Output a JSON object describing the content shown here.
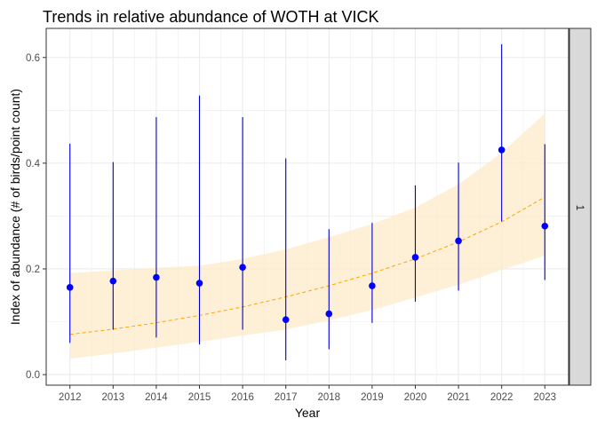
{
  "chart_data": {
    "type": "scatter",
    "title": "Trends in relative abundance of WOTH at VICK",
    "xlabel": "Year",
    "ylabel": "Index of abundance (# of birds/point count)",
    "strip_label": "1",
    "xlim": [
      2011.45,
      2023.55
    ],
    "ylim": [
      -0.02,
      0.655
    ],
    "x_ticks": [
      2012,
      2013,
      2014,
      2015,
      2016,
      2017,
      2018,
      2019,
      2020,
      2021,
      2022,
      2023
    ],
    "y_ticks": [
      0.0,
      0.2,
      0.4,
      0.6
    ],
    "y_tick_labels": [
      "0.0",
      "0.2",
      "0.4",
      "0.6"
    ],
    "grid": true,
    "colors": {
      "points": "#0000ff",
      "error_bars": "#0000cd",
      "trend_line": "#ffa500",
      "ribbon": "#fdebc8",
      "grid": "#ebebeb",
      "strip": "#d9d9d9",
      "panel_border": "#333333"
    },
    "series": [
      {
        "values": [
          {
            "x": 2012,
            "y": 0.165,
            "lower": 0.06,
            "upper": 0.437
          },
          {
            "x": 2013,
            "y": 0.177,
            "lower": 0.085,
            "upper": 0.402
          },
          {
            "x": 2014,
            "y": 0.184,
            "lower": 0.07,
            "upper": 0.487
          },
          {
            "x": 2015,
            "y": 0.173,
            "lower": 0.057,
            "upper": 0.528
          },
          {
            "x": 2016,
            "y": 0.203,
            "lower": 0.085,
            "upper": 0.487
          },
          {
            "x": 2017,
            "y": 0.104,
            "lower": 0.027,
            "upper": 0.409
          },
          {
            "x": 2018,
            "y": 0.115,
            "lower": 0.048,
            "upper": 0.275
          },
          {
            "x": 2019,
            "y": 0.168,
            "lower": 0.098,
            "upper": 0.287
          },
          {
            "x": 2020,
            "y": 0.222,
            "lower": 0.138,
            "upper": 0.358
          },
          {
            "x": 2021,
            "y": 0.253,
            "lower": 0.159,
            "upper": 0.401
          },
          {
            "x": 2022,
            "y": 0.425,
            "lower": 0.29,
            "upper": 0.625
          },
          {
            "x": 2023,
            "y": 0.281,
            "lower": 0.179,
            "upper": 0.436
          }
        ]
      }
    ],
    "trend": {
      "style": "dashed",
      "points": [
        {
          "x": 2012,
          "y": 0.076,
          "lower": 0.03,
          "upper": 0.192
        },
        {
          "x": 2013,
          "y": 0.086,
          "lower": 0.04,
          "upper": 0.197
        },
        {
          "x": 2014,
          "y": 0.098,
          "lower": 0.051,
          "upper": 0.202
        },
        {
          "x": 2015,
          "y": 0.112,
          "lower": 0.062,
          "upper": 0.206
        },
        {
          "x": 2016,
          "y": 0.128,
          "lower": 0.074,
          "upper": 0.219
        },
        {
          "x": 2017,
          "y": 0.147,
          "lower": 0.085,
          "upper": 0.237
        },
        {
          "x": 2018,
          "y": 0.168,
          "lower": 0.103,
          "upper": 0.26
        },
        {
          "x": 2019,
          "y": 0.192,
          "lower": 0.122,
          "upper": 0.285
        },
        {
          "x": 2020,
          "y": 0.219,
          "lower": 0.146,
          "upper": 0.316
        },
        {
          "x": 2021,
          "y": 0.251,
          "lower": 0.17,
          "upper": 0.36
        },
        {
          "x": 2022,
          "y": 0.289,
          "lower": 0.198,
          "upper": 0.42
        },
        {
          "x": 2023,
          "y": 0.336,
          "lower": 0.225,
          "upper": 0.494
        }
      ]
    }
  }
}
